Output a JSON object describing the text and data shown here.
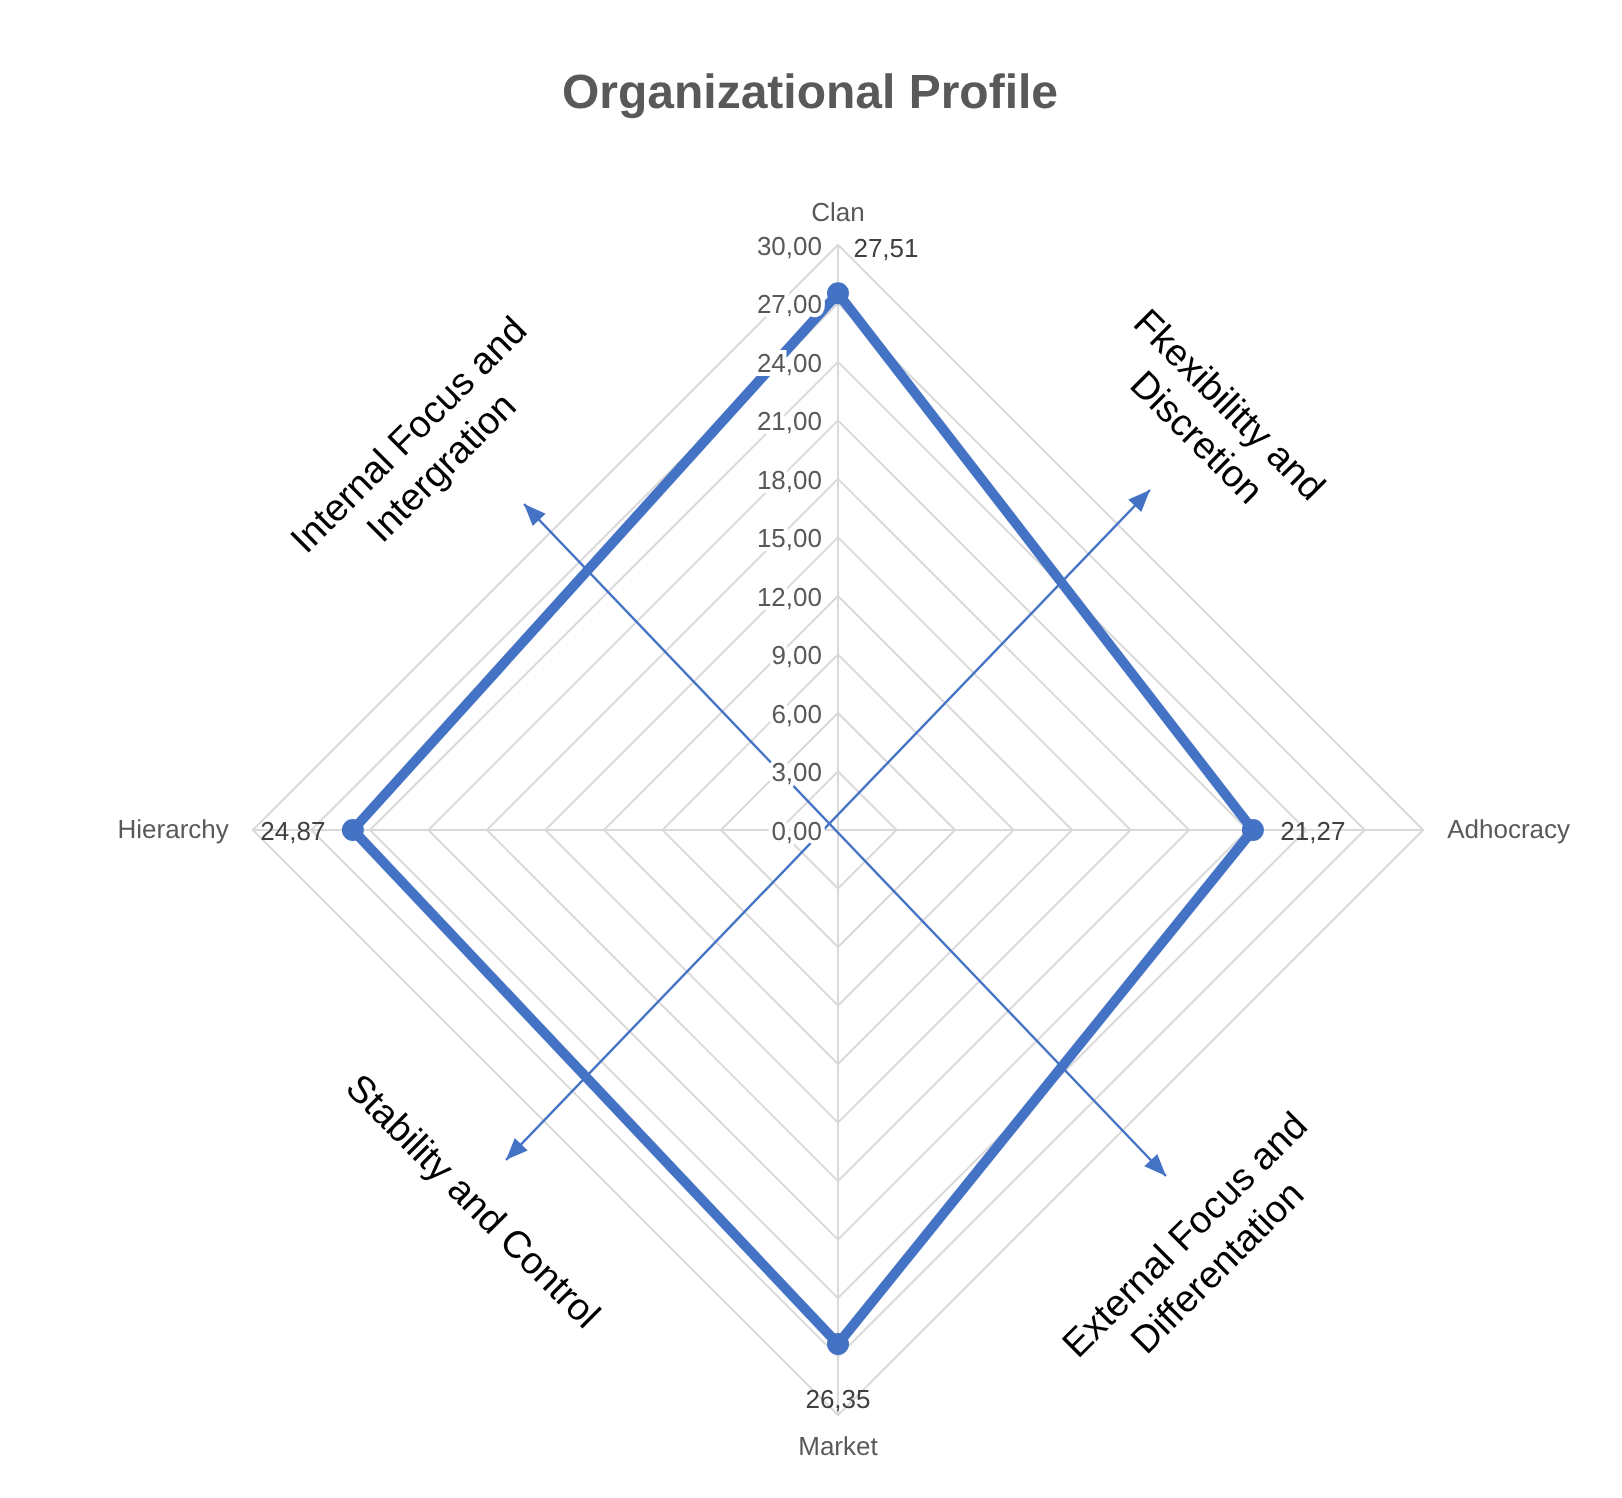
{
  "chart_data": {
    "type": "radar",
    "title": "Organizational Profile",
    "categories": [
      "Clan",
      "Adhocracy",
      "Market",
      "Hierarchy"
    ],
    "series": [
      {
        "color": "#4472c4",
        "values": [
          27.51,
          21.27,
          26.35,
          24.87
        ],
        "value_labels": [
          "27,51",
          "21,27",
          "26,35",
          "24,87"
        ]
      }
    ],
    "ylim": [
      0,
      30
    ],
    "yticks": [
      {
        "value": 0,
        "label": "0,00"
      },
      {
        "value": 3,
        "label": "3,00"
      },
      {
        "value": 6,
        "label": "6,00"
      },
      {
        "value": 9,
        "label": "9,00"
      },
      {
        "value": 12,
        "label": "12,00"
      },
      {
        "value": 15,
        "label": "15,00"
      },
      {
        "value": 18,
        "label": "18,00"
      },
      {
        "value": 21,
        "label": "21,00"
      },
      {
        "value": 24,
        "label": "24,00"
      },
      {
        "value": 27,
        "label": "27,00"
      },
      {
        "value": 30,
        "label": "30,00"
      }
    ],
    "grid": true,
    "marker": "circle",
    "line_style": "solid",
    "annotations": [
      "Internal Focus and\nIntergration",
      "Fkexibilitty and\nDiscretion",
      "Stability and Control",
      "External Focus and\nDifferentation"
    ]
  }
}
